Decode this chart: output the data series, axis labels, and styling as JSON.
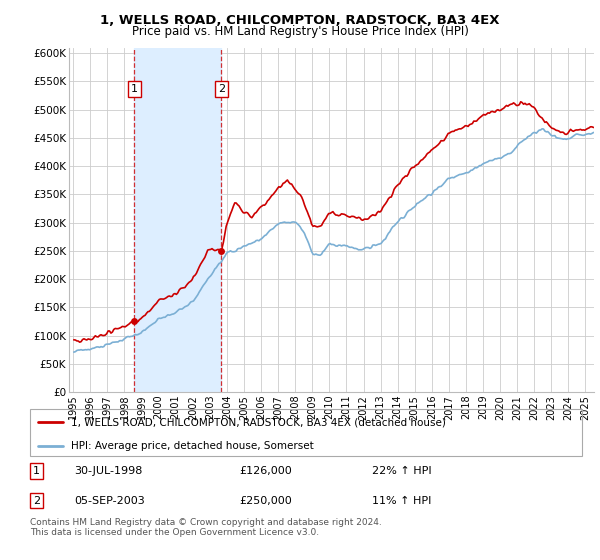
{
  "title": "1, WELLS ROAD, CHILCOMPTON, RADSTOCK, BA3 4EX",
  "subtitle": "Price paid vs. HM Land Registry's House Price Index (HPI)",
  "legend_line1": "1, WELLS ROAD, CHILCOMPTON, RADSTOCK, BA3 4EX (detached house)",
  "legend_line2": "HPI: Average price, detached house, Somerset",
  "footnote": "Contains HM Land Registry data © Crown copyright and database right 2024.\nThis data is licensed under the Open Government Licence v3.0.",
  "transaction1_label": "1",
  "transaction1_date": "30-JUL-1998",
  "transaction1_price": "£126,000",
  "transaction1_hpi": "22% ↑ HPI",
  "transaction2_label": "2",
  "transaction2_date": "05-SEP-2003",
  "transaction2_price": "£250,000",
  "transaction2_hpi": "11% ↑ HPI",
  "ylim": [
    0,
    610000
  ],
  "yticks": [
    0,
    50000,
    100000,
    150000,
    200000,
    250000,
    300000,
    350000,
    400000,
    450000,
    500000,
    550000,
    600000
  ],
  "ytick_labels": [
    "£0",
    "£50K",
    "£100K",
    "£150K",
    "£200K",
    "£250K",
    "£300K",
    "£350K",
    "£400K",
    "£450K",
    "£500K",
    "£550K",
    "£600K"
  ],
  "background_color": "#ffffff",
  "grid_color": "#cccccc",
  "hpi_color": "#7bafd4",
  "price_color": "#cc0000",
  "shade_color": "#ddeeff",
  "transaction1_x": 1998.58,
  "transaction1_y": 126000,
  "transaction2_x": 2003.67,
  "transaction2_y": 250000,
  "xlim_left": 1994.75,
  "xlim_right": 2025.5
}
